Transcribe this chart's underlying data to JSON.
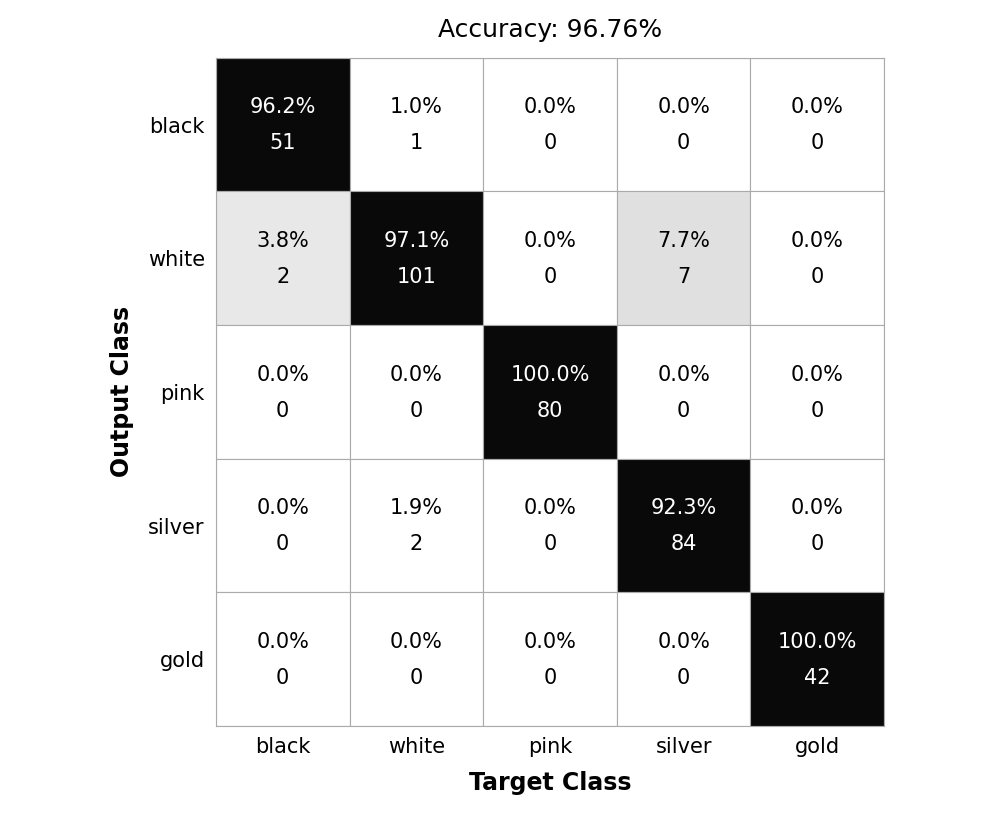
{
  "title": "Accuracy: 96.76%",
  "classes": [
    "black",
    "white",
    "pink",
    "silver",
    "gold"
  ],
  "xlabel": "Target Class",
  "ylabel": "Output Class",
  "matrix_counts": [
    [
      51,
      1,
      0,
      0,
      0
    ],
    [
      2,
      101,
      0,
      7,
      0
    ],
    [
      0,
      0,
      80,
      0,
      0
    ],
    [
      0,
      2,
      0,
      84,
      0
    ],
    [
      0,
      0,
      0,
      0,
      42
    ]
  ],
  "matrix_percents": [
    [
      "96.2%",
      "1.0%",
      "0.0%",
      "0.0%",
      "0.0%"
    ],
    [
      "3.8%",
      "97.1%",
      "0.0%",
      "7.7%",
      "0.0%"
    ],
    [
      "0.0%",
      "0.0%",
      "100.0%",
      "0.0%",
      "0.0%"
    ],
    [
      "0.0%",
      "1.9%",
      "0.0%",
      "92.3%",
      "0.0%"
    ],
    [
      "0.0%",
      "0.0%",
      "0.0%",
      "0.0%",
      "100.0%"
    ]
  ],
  "cell_colors": [
    [
      "#090909",
      "#ffffff",
      "#ffffff",
      "#ffffff",
      "#ffffff"
    ],
    [
      "#e8e8e8",
      "#090909",
      "#ffffff",
      "#e0e0e0",
      "#ffffff"
    ],
    [
      "#ffffff",
      "#ffffff",
      "#090909",
      "#ffffff",
      "#ffffff"
    ],
    [
      "#ffffff",
      "#ffffff",
      "#ffffff",
      "#090909",
      "#ffffff"
    ],
    [
      "#ffffff",
      "#ffffff",
      "#ffffff",
      "#ffffff",
      "#090909"
    ]
  ],
  "text_colors": [
    [
      "#ffffff",
      "#000000",
      "#000000",
      "#000000",
      "#000000"
    ],
    [
      "#000000",
      "#ffffff",
      "#000000",
      "#000000",
      "#000000"
    ],
    [
      "#000000",
      "#000000",
      "#ffffff",
      "#000000",
      "#000000"
    ],
    [
      "#000000",
      "#000000",
      "#000000",
      "#ffffff",
      "#000000"
    ],
    [
      "#000000",
      "#000000",
      "#000000",
      "#000000",
      "#ffffff"
    ]
  ],
  "figsize": [
    10.0,
    8.25
  ],
  "dpi": 100,
  "title_fontsize": 18,
  "label_fontsize": 17,
  "cell_fontsize": 15,
  "tick_fontsize": 15,
  "grid_color": "#aaaaaa",
  "grid_linewidth": 0.8
}
